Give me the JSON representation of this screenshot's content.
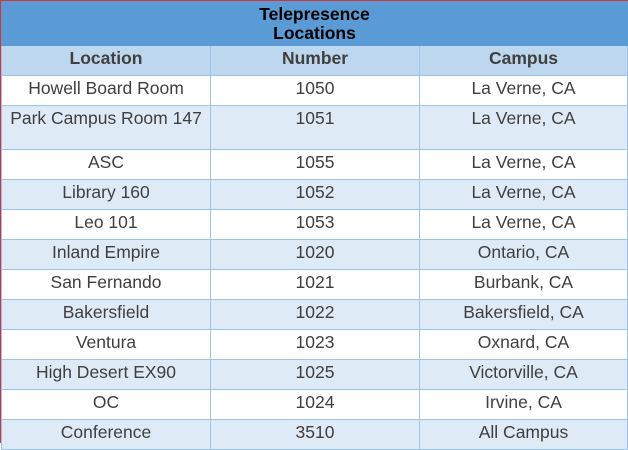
{
  "table": {
    "title_line1": "Telepresence",
    "title_line2": "Locations",
    "headers": [
      "Location",
      "Number",
      "Campus"
    ],
    "rows": [
      {
        "location": "Howell Board Room",
        "number": "1050",
        "campus": "La Verne, CA"
      },
      {
        "location": "Park Campus Room 147",
        "number": "1051",
        "campus": "La Verne, CA"
      },
      {
        "location": "ASC",
        "number": "1055",
        "campus": "La Verne, CA"
      },
      {
        "location": "Library 160",
        "number": "1052",
        "campus": "La Verne, CA"
      },
      {
        "location": "Leo 101",
        "number": "1053",
        "campus": "La Verne, CA"
      },
      {
        "location": "Inland Empire",
        "number": "1020",
        "campus": "Ontario, CA"
      },
      {
        "location": "San Fernando",
        "number": "1021",
        "campus": "Burbank, CA"
      },
      {
        "location": "Bakersfield",
        "number": "1022",
        "campus": "Bakersfield, CA"
      },
      {
        "location": "Ventura",
        "number": "1023",
        "campus": "Oxnard, CA"
      },
      {
        "location": "High Desert EX90",
        "number": "1025",
        "campus": "Victorville, CA"
      },
      {
        "location": "OC",
        "number": "1024",
        "campus": "Irvine, CA"
      },
      {
        "location": "Conference",
        "number": "3510",
        "campus": "All Campus"
      }
    ]
  },
  "colors": {
    "title_bg": "#5b9bd5",
    "header_bg": "#bdd7ee",
    "band_bg": "#deeaf6",
    "border": "#9dc3e6",
    "outer_border": "#d13438"
  }
}
